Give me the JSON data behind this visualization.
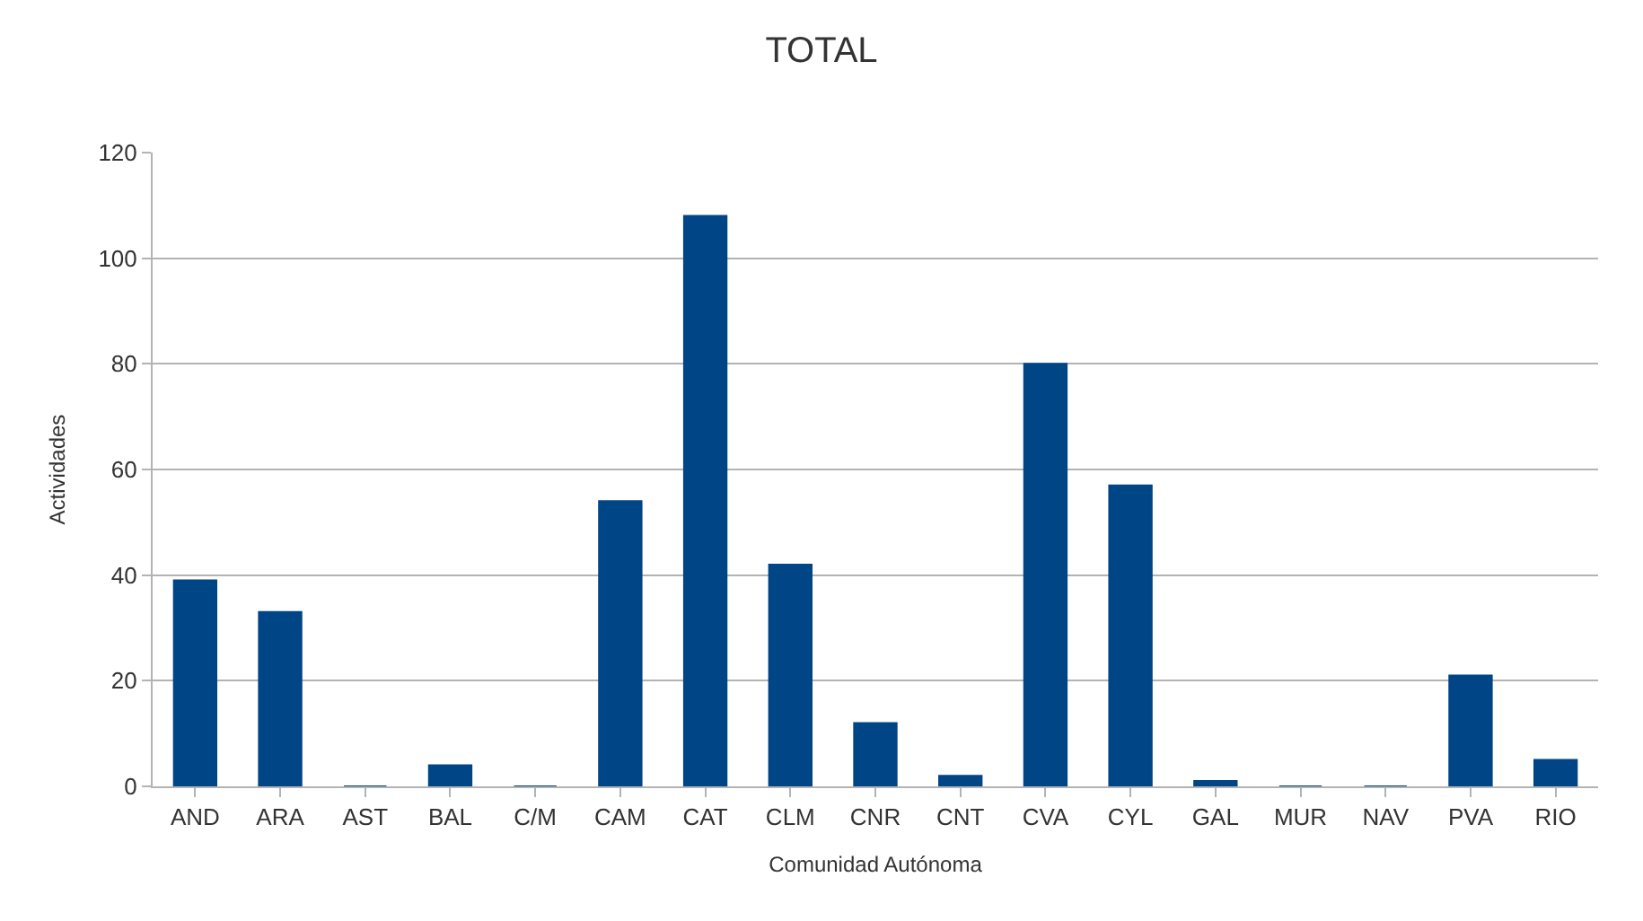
{
  "chart_data": {
    "type": "bar",
    "title": "TOTAL",
    "xlabel": "Comunidad Autónoma",
    "ylabel": "Actividades",
    "categories": [
      "AND",
      "ARA",
      "AST",
      "BAL",
      "C/M",
      "CAM",
      "CAT",
      "CLM",
      "CNR",
      "CNT",
      "CVA",
      "CYL",
      "GAL",
      "MUR",
      "NAV",
      "PVA",
      "RIO"
    ],
    "values": [
      39,
      33,
      0,
      4,
      0,
      54,
      108,
      42,
      12,
      2,
      80,
      57,
      1,
      0,
      0,
      21,
      5
    ],
    "color": "#004586",
    "ylim": [
      0,
      120
    ],
    "yticks": [
      0,
      20,
      40,
      60,
      80,
      100,
      120
    ],
    "grid": "y"
  }
}
